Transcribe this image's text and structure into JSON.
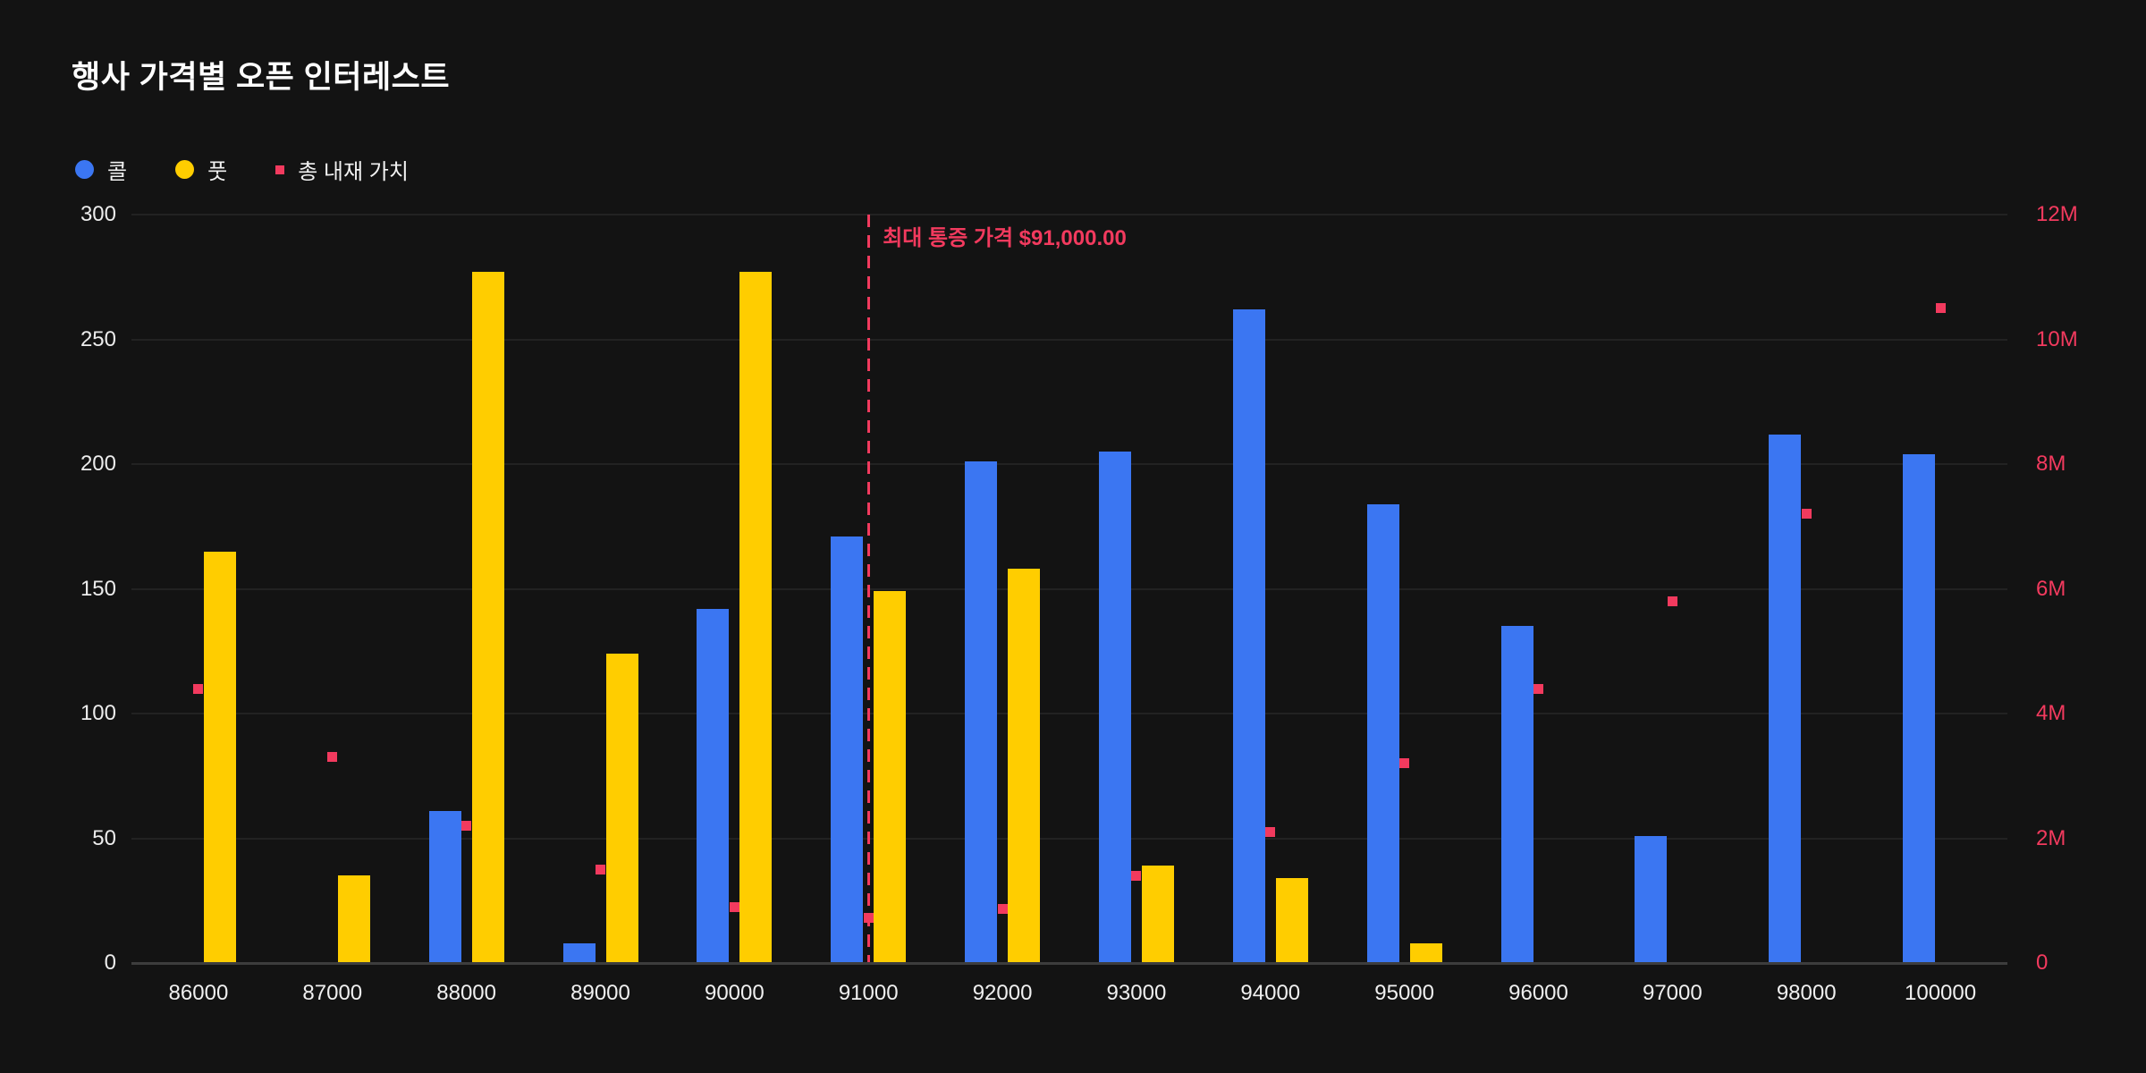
{
  "header": {
    "title": "행사 가격별 오픈 인터레스트"
  },
  "legend": {
    "items": [
      {
        "label": "콜",
        "color": "#3B76F2",
        "marker": "circle"
      },
      {
        "label": "풋",
        "color": "#FFCD00",
        "marker": "circle"
      },
      {
        "label": "총 내재 가치",
        "color": "#F23A5E",
        "marker": "square"
      }
    ]
  },
  "colors": {
    "background": "#131313",
    "call_blue": "#3B76F2",
    "put_yellow": "#FFCD00",
    "accent_pink": "#F23A5E",
    "gridline": "#222222",
    "axis_baseline": "#3D3D3D",
    "text_primary": "#FFFFFF",
    "text_ticks": "#ECECEC"
  },
  "chart_data": {
    "type": "bar",
    "title": "행사 가격별 오픈 인터레스트",
    "categories": [
      "86000",
      "87000",
      "88000",
      "89000",
      "90000",
      "91000",
      "92000",
      "93000",
      "94000",
      "95000",
      "96000",
      "97000",
      "98000",
      "100000"
    ],
    "series": [
      {
        "name": "콜",
        "type": "bar",
        "axis": "left",
        "color": "#3B76F2",
        "values": [
          0,
          0,
          61,
          8,
          142,
          171,
          201,
          205,
          262,
          184,
          135,
          51,
          212,
          204
        ]
      },
      {
        "name": "풋",
        "type": "bar",
        "axis": "left",
        "color": "#FFCD00",
        "values": [
          165,
          35,
          277,
          124,
          277,
          149,
          158,
          39,
          34,
          8,
          0,
          0,
          0,
          0
        ]
      },
      {
        "name": "총 내재 가치",
        "type": "scatter",
        "axis": "right",
        "color": "#F23A5E",
        "values": [
          4400000,
          3300000,
          2200000,
          1500000,
          900000,
          730000,
          870000,
          1400000,
          2100000,
          3200000,
          4400000,
          5800000,
          7200000,
          10500000
        ]
      }
    ],
    "left_axis": {
      "min": 0,
      "max": 300,
      "tick_labels": [
        "0",
        "50",
        "100",
        "150",
        "200",
        "250",
        "300"
      ]
    },
    "right_axis": {
      "min": 0,
      "max": 12000000,
      "tick_labels": [
        "0",
        "2M",
        "4M",
        "6M",
        "8M",
        "10M",
        "12M"
      ]
    },
    "annotation": {
      "label": "최대 통증 가격 $91,000.00",
      "category": "91000"
    },
    "legend_position": "top-left",
    "grid": "horizontal"
  }
}
